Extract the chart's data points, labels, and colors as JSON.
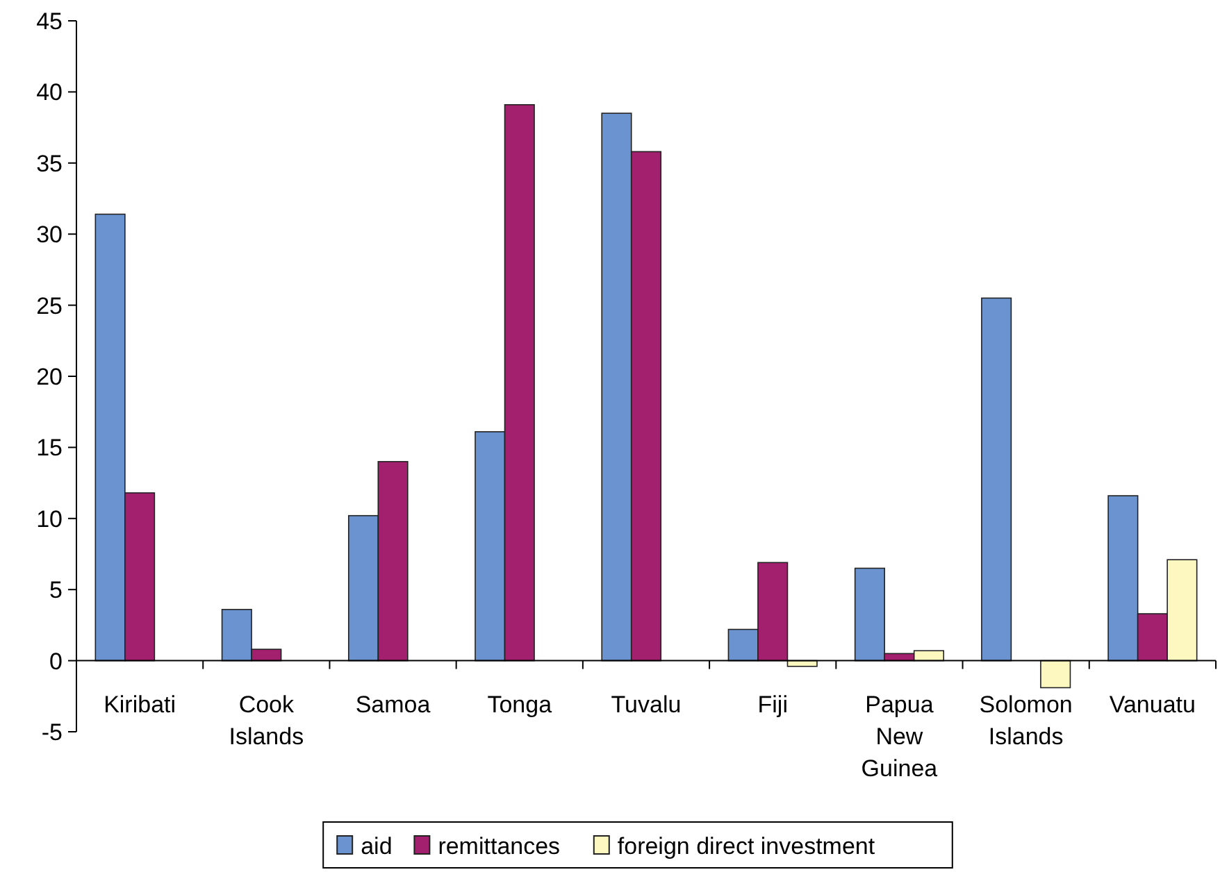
{
  "chart_data": {
    "type": "bar",
    "categories": [
      "Kiribati",
      "Cook Islands",
      "Samoa",
      "Tonga",
      "Tuvalu",
      "Fiji",
      "Papua New Guinea",
      "Solomon Islands",
      "Vanuatu"
    ],
    "series": [
      {
        "name": "aid",
        "color": "#6b93cf",
        "values": [
          31.4,
          3.6,
          10.2,
          16.1,
          38.5,
          2.2,
          6.5,
          25.5,
          11.6
        ]
      },
      {
        "name": "remittances",
        "color": "#a3206e",
        "values": [
          11.8,
          0.8,
          14.0,
          39.1,
          35.8,
          6.9,
          0.5,
          null,
          3.3
        ]
      },
      {
        "name": "foreign direct investment",
        "color": "#fdf8c0",
        "values": [
          null,
          null,
          null,
          null,
          null,
          -0.4,
          0.7,
          -1.9,
          7.1
        ]
      }
    ],
    "ylim": [
      -5,
      45
    ],
    "yticks": [
      -5,
      0,
      5,
      10,
      15,
      20,
      25,
      30,
      35,
      40,
      45
    ],
    "grid": false,
    "legend": "bottom"
  }
}
